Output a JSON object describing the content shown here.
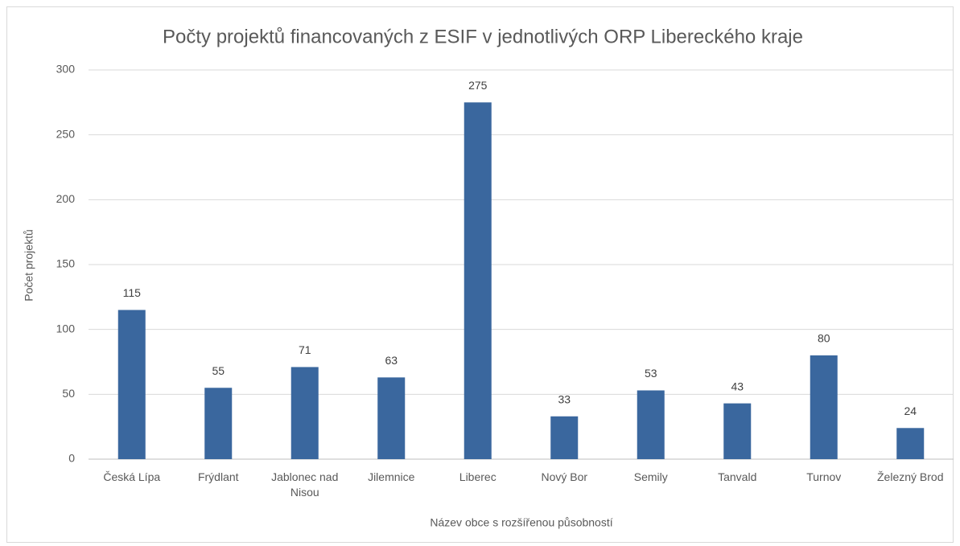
{
  "chart_data": {
    "type": "bar",
    "title": "Počty projektů financovaných z ESIF v jednotlivých ORP Libereckého kraje",
    "x_label": "Název obce s rozšířenou působností",
    "y_label": "Počet projektů",
    "categories": [
      "Česká Lípa",
      "Frýdlant",
      "Jablonec nad Nisou",
      "Jilemnice",
      "Liberec",
      "Nový Bor",
      "Semily",
      "Tanvald",
      "Turnov",
      "Železný Brod"
    ],
    "values": [
      115,
      55,
      71,
      63,
      275,
      33,
      53,
      43,
      80,
      24
    ],
    "color": "#3a679e",
    "ylim": [
      0,
      300
    ],
    "yticks": [
      0,
      50,
      100,
      150,
      200,
      250,
      300
    ],
    "grid": true
  }
}
